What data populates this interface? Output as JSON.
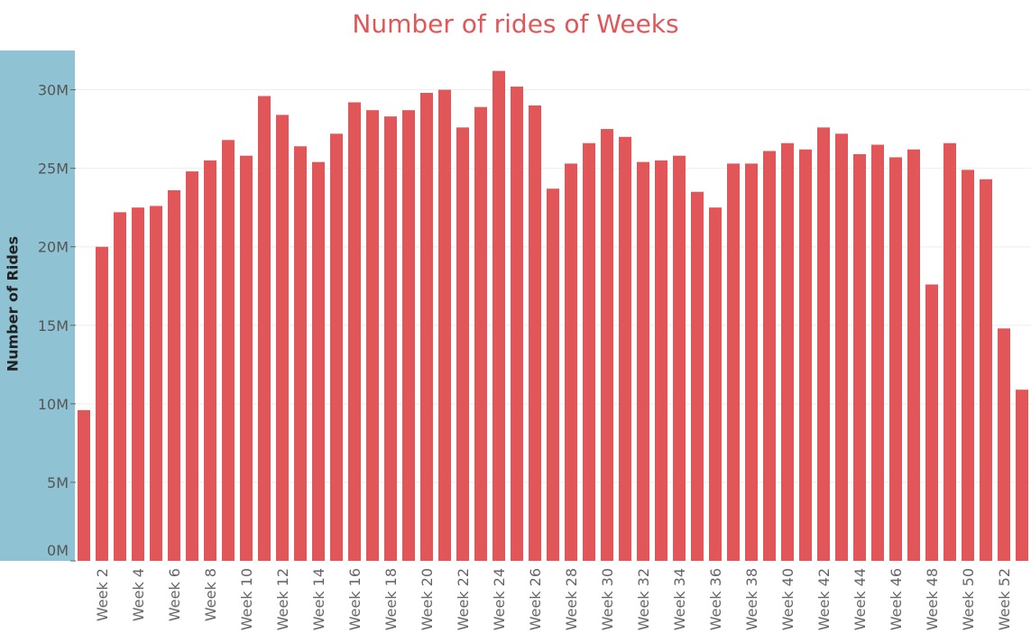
{
  "chart_data": {
    "type": "bar",
    "title": "Number of rides of Weeks",
    "xlabel": "",
    "ylabel": "Number of Rides",
    "ylim": [
      0,
      32500000
    ],
    "grid": true,
    "colors": {
      "bar": "#E15759",
      "title": "#E15759",
      "axis_panel": "#8FC3D4",
      "grid": "#EEEEEE"
    },
    "yticks": [
      {
        "value": 0,
        "label": "0M"
      },
      {
        "value": 5000000,
        "label": "5M"
      },
      {
        "value": 10000000,
        "label": "10M"
      },
      {
        "value": 15000000,
        "label": "15M"
      },
      {
        "value": 20000000,
        "label": "20M"
      },
      {
        "value": 25000000,
        "label": "25M"
      },
      {
        "value": 30000000,
        "label": "30M"
      }
    ],
    "categories": [
      "Week 1",
      "Week 2",
      "Week 3",
      "Week 4",
      "Week 5",
      "Week 6",
      "Week 7",
      "Week 8",
      "Week 9",
      "Week 10",
      "Week 11",
      "Week 12",
      "Week 13",
      "Week 14",
      "Week 15",
      "Week 16",
      "Week 17",
      "Week 18",
      "Week 19",
      "Week 20",
      "Week 21",
      "Week 22",
      "Week 23",
      "Week 24",
      "Week 25",
      "Week 26",
      "Week 27",
      "Week 28",
      "Week 29",
      "Week 30",
      "Week 31",
      "Week 32",
      "Week 33",
      "Week 34",
      "Week 35",
      "Week 36",
      "Week 37",
      "Week 38",
      "Week 39",
      "Week 40",
      "Week 41",
      "Week 42",
      "Week 43",
      "Week 44",
      "Week 45",
      "Week 46",
      "Week 47",
      "Week 48",
      "Week 49",
      "Week 50",
      "Week 51",
      "Week 52",
      "Week 53"
    ],
    "tick_labels": [
      "",
      "Week 2",
      "",
      "Week 4",
      "",
      "Week 6",
      "",
      "Week 8",
      "",
      "Week 10",
      "",
      "Week 12",
      "",
      "Week 14",
      "",
      "Week 16",
      "",
      "Week 18",
      "",
      "Week 20",
      "",
      "Week 22",
      "",
      "Week 24",
      "",
      "Week 26",
      "",
      "Week 28",
      "",
      "Week 30",
      "",
      "Week 32",
      "",
      "Week 34",
      "",
      "Week 36",
      "",
      "Week 38",
      "",
      "Week 40",
      "",
      "Week 42",
      "",
      "Week 44",
      "",
      "Week 46",
      "",
      "Week 48",
      "",
      "Week 50",
      "",
      "Week 52",
      ""
    ],
    "values": [
      9600000,
      20000000,
      22200000,
      22500000,
      22600000,
      23600000,
      24800000,
      25500000,
      26800000,
      25800000,
      29600000,
      28400000,
      26400000,
      25400000,
      27200000,
      29200000,
      28700000,
      28300000,
      28700000,
      29800000,
      30000000,
      27600000,
      28900000,
      31200000,
      30200000,
      29000000,
      23700000,
      25300000,
      26600000,
      27500000,
      27000000,
      25400000,
      25500000,
      25800000,
      23500000,
      22500000,
      25300000,
      25300000,
      26100000,
      26600000,
      26200000,
      27600000,
      27200000,
      25900000,
      26500000,
      25700000,
      26200000,
      17600000,
      26600000,
      24900000,
      24300000,
      14800000,
      10900000
    ]
  }
}
